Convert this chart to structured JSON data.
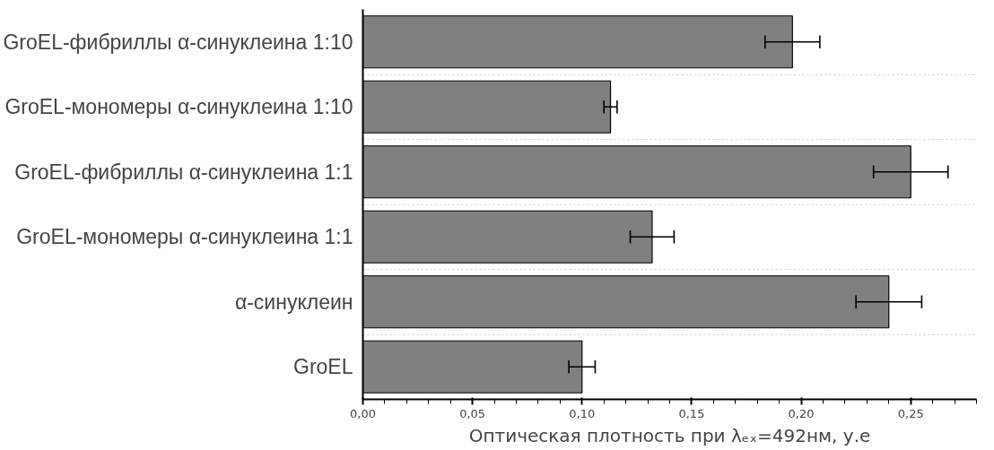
{
  "chart_data": {
    "type": "bar",
    "orientation": "horizontal",
    "xlabel": "Оптическая плотность при λₑₓ=492нм, у.е",
    "categories": [
      "GroEL-фибриллы α-синуклеина 1:10",
      "GroEL-мономеры α-синуклеина 1:10",
      "GroEL-фибриллы α-синуклеина 1:1",
      "GroEL-мономеры α-синуклеина 1:1",
      "α-синуклеин",
      "GroEL"
    ],
    "values": [
      0.196,
      0.113,
      0.25,
      0.132,
      0.24,
      0.1
    ],
    "errors": [
      0.0125,
      0.003,
      0.017,
      0.01,
      0.015,
      0.006
    ],
    "color": "#808080",
    "xlim": [
      0,
      0.28
    ],
    "xticks": [
      {
        "value": 0,
        "label": "0,00"
      },
      {
        "value": 0.05,
        "label": "0,05"
      },
      {
        "value": 0.1,
        "label": "0,10"
      },
      {
        "value": 0.15,
        "label": "0,15"
      },
      {
        "value": 0.2,
        "label": "0,20"
      },
      {
        "value": 0.25,
        "label": "0,25"
      }
    ],
    "grid": "y"
  }
}
